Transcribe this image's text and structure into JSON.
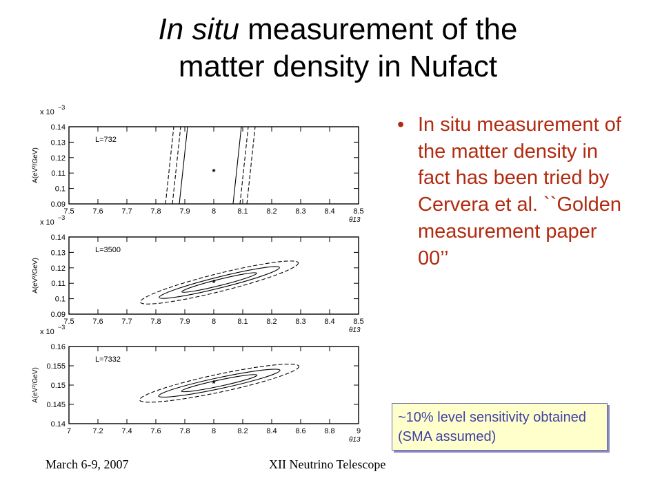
{
  "title": {
    "italic": "In situ",
    "rest_line1": " measurement of the",
    "line2": "matter density in Nufact"
  },
  "bullet": {
    "marker": "•",
    "text": "In situ measurement of the matter density in fact has been tried by Cervera et al. ``Golden measurement paper 00’’"
  },
  "note": "~10% level sensitivity obtained (SMA assumed)",
  "footer": {
    "date": "March 6-9, 2007",
    "event": "XII Neutrino Telescope"
  },
  "chart_data": [
    {
      "type": "scatter",
      "annotation": "L=732",
      "exponent_label": "x 10",
      "exponent_sup": "−3",
      "ylabel": "A(eV²/GeV)",
      "xlabel": "θ13",
      "x_ticks": [
        "7.5",
        "7.6",
        "7.7",
        "7.8",
        "7.9",
        "8",
        "8.1",
        "8.2",
        "8.3",
        "8.4",
        "8.5"
      ],
      "y_ticks": [
        "0.09",
        "0.1",
        "0.11",
        "0.12",
        "0.13",
        "0.14"
      ],
      "xlim": [
        7.5,
        8.5
      ],
      "ylim": [
        0.09,
        0.14
      ],
      "best_fit": {
        "x": 8.0,
        "y": 0.111
      },
      "contours": "band"
    },
    {
      "type": "scatter",
      "annotation": "L=3500",
      "exponent_label": "x 10",
      "exponent_sup": "−3",
      "ylabel": "A(eV²/GeV)",
      "xlabel": "θ13",
      "x_ticks": [
        "7.5",
        "7.6",
        "7.7",
        "7.8",
        "7.9",
        "8",
        "8.1",
        "8.2",
        "8.3",
        "8.4",
        "8.5"
      ],
      "y_ticks": [
        "0.09",
        "0.1",
        "0.11",
        "0.12",
        "0.13",
        "0.14"
      ],
      "xlim": [
        7.5,
        8.5
      ],
      "ylim": [
        0.09,
        0.14
      ],
      "best_fit": {
        "x": 8.0,
        "y": 0.1105
      },
      "contours": "ellipse"
    },
    {
      "type": "scatter",
      "annotation": "L=7332",
      "exponent_label": "x 10",
      "exponent_sup": "−3",
      "ylabel": "A(eV²/GeV)",
      "xlabel": "θ13",
      "x_ticks": [
        "7",
        "7.2",
        "7.4",
        "7.6",
        "7.8",
        "8",
        "8.2",
        "8.4",
        "8.6",
        "8.8",
        "9"
      ],
      "y_ticks": [
        "0.14",
        "0.145",
        "0.15",
        "0.155",
        "0.16"
      ],
      "xlim": [
        7.0,
        9.0
      ],
      "ylim": [
        0.14,
        0.16
      ],
      "best_fit": {
        "x": 8.0,
        "y": 0.1505
      },
      "contours": "ellipse"
    }
  ]
}
